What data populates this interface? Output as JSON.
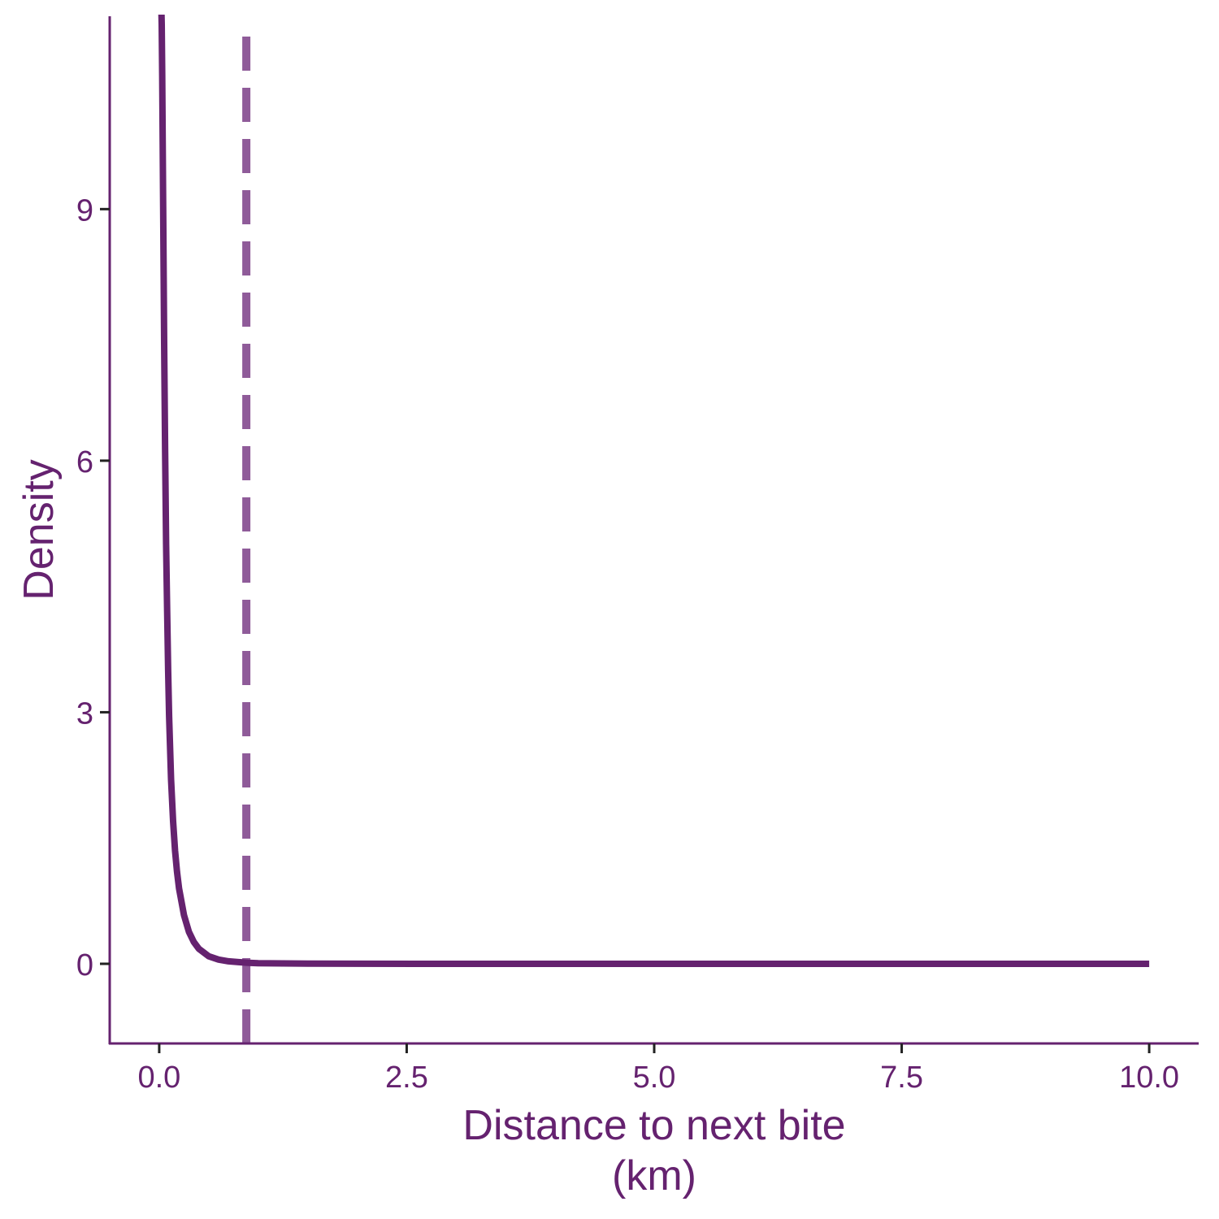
{
  "chart_data": {
    "type": "line",
    "title": "",
    "xlabel_lines": [
      "Distance to next bite",
      "(km)"
    ],
    "ylabel": "Density",
    "xlim": [
      -0.5,
      10.5
    ],
    "ylim": [
      -0.95,
      11.3
    ],
    "x_ticks": [
      0,
      2.5,
      5,
      7.5,
      10
    ],
    "x_tick_labels": [
      "0.0",
      "2.5",
      "5.0",
      "7.5",
      "10.0"
    ],
    "y_ticks": [
      0,
      3,
      6,
      9
    ],
    "y_tick_labels": [
      "0",
      "3",
      "6",
      "9"
    ],
    "grid": false,
    "legend": "none",
    "series": [
      {
        "style": "solid",
        "x": [
          0.02,
          0.025,
          0.03,
          0.035,
          0.04,
          0.045,
          0.05,
          0.06,
          0.07,
          0.08,
          0.09,
          0.1,
          0.12,
          0.14,
          0.16,
          0.18,
          0.2,
          0.25,
          0.3,
          0.35,
          0.4,
          0.5,
          0.6,
          0.7,
          0.8,
          0.9,
          1.0,
          1.5,
          2.0,
          3.0,
          4.0,
          5.0,
          6.0,
          7.0,
          8.0,
          9.0,
          10.0
        ],
        "y": [
          11.5,
          11.2,
          10.6,
          9.8,
          9.0,
          8.2,
          7.4,
          6.1,
          5.0,
          4.2,
          3.5,
          2.95,
          2.2,
          1.7,
          1.35,
          1.1,
          0.9,
          0.58,
          0.38,
          0.26,
          0.18,
          0.09,
          0.05,
          0.03,
          0.02,
          0.012,
          0.008,
          0.003,
          0.001,
          0.0,
          0.0,
          0.0,
          0.0,
          0.0,
          0.0,
          0.0,
          0.0
        ]
      }
    ],
    "vlines": [
      {
        "x": 0.88,
        "style": "dashed"
      }
    ],
    "colors": {
      "line": "#65226f",
      "vline": "#8f5b99",
      "axis": "#65226f",
      "text": "#65226f",
      "tick_marks": "#222222"
    }
  }
}
